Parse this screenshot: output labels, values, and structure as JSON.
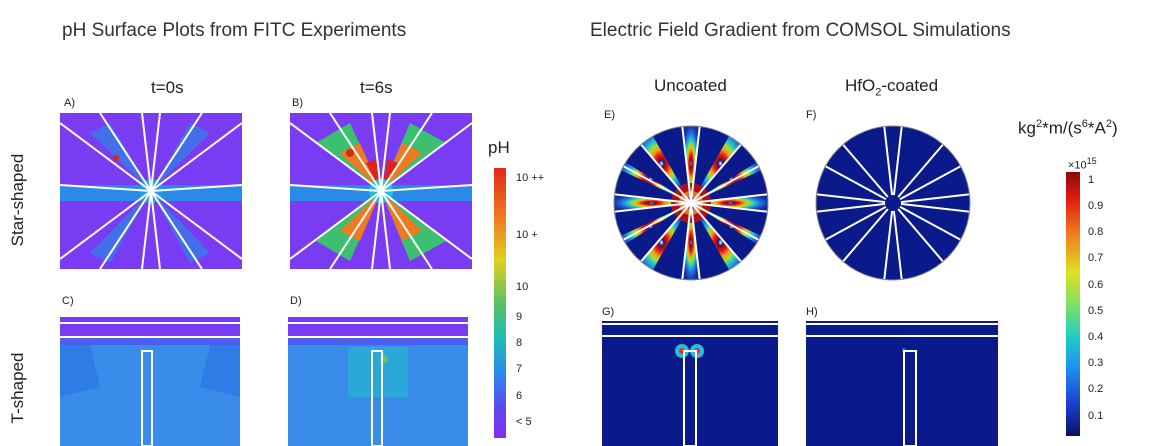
{
  "titles": {
    "left": "pH Surface Plots from FITC Experiments",
    "right": "Electric Field Gradient from COMSOL Simulations"
  },
  "columns": {
    "t0": "t=0s",
    "t6": "t=6s",
    "uncoated": "Uncoated",
    "hfo2_prefix": "HfO",
    "hfo2_sub": "2",
    "hfo2_suffix": "-coated"
  },
  "rows": {
    "star": "Star-shaped",
    "t": "T-shaped"
  },
  "panels": [
    "A)",
    "B)",
    "C)",
    "D)",
    "E)",
    "F)",
    "G)",
    "H)"
  ],
  "ph_colorbar": {
    "title": "pH",
    "ticks": [
      "10 ++",
      "10 +",
      "10",
      "9",
      "8",
      "7",
      "6",
      "< 5"
    ]
  },
  "field_colorbar": {
    "unit_kg": "kg",
    "unit_sup1": "2",
    "unit_m": "*m/(s",
    "unit_sup2": "6",
    "unit_a": "*A",
    "unit_sup3": "2",
    "unit_close": ")",
    "scale_prefix": "×10",
    "scale_exp": "15",
    "ticks": [
      "1",
      "0.9",
      "0.8",
      "0.7",
      "0.6",
      "0.5",
      "0.4",
      "0.3",
      "0.2",
      "0.1"
    ]
  }
}
